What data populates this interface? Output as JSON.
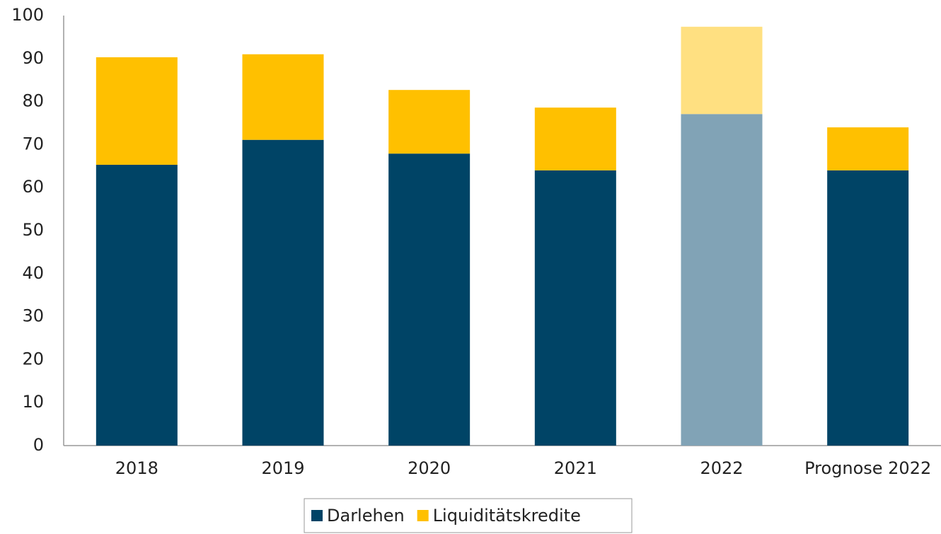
{
  "chart_data": {
    "type": "stacked_bar",
    "categories": [
      "2018",
      "2019",
      "2020",
      "2021",
      "2022",
      "Prognose 2022"
    ],
    "series": [
      {
        "name": "Darlehen",
        "color": "#004466",
        "colors": [
          "#004466",
          "#004466",
          "#004466",
          "#004466",
          "#81a3b6",
          "#004466"
        ],
        "values": [
          65.3,
          71.1,
          67.9,
          64.0,
          77.1,
          64.0
        ]
      },
      {
        "name": "Liquiditätskredite",
        "color": "#ffc000",
        "colors": [
          "#ffc000",
          "#ffc000",
          "#ffc000",
          "#ffc000",
          "#ffe081",
          "#ffc000"
        ],
        "values": [
          25.0,
          19.9,
          14.8,
          14.6,
          20.3,
          10.0
        ]
      }
    ],
    "ylim": [
      0,
      100
    ],
    "yticks": [
      0,
      10,
      20,
      30,
      40,
      50,
      60,
      70,
      80,
      90,
      100
    ],
    "grid": false,
    "legend": "bottom"
  }
}
